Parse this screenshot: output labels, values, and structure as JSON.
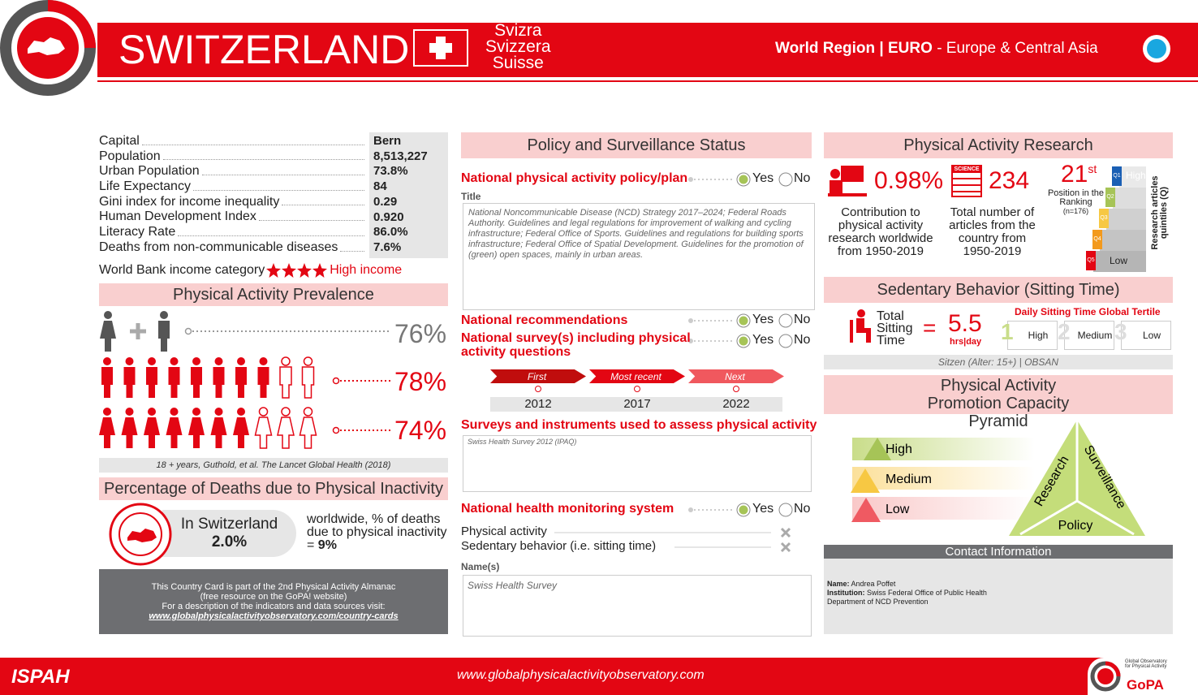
{
  "header": {
    "title": "SWITZERLAND",
    "local_names": [
      "Svizra",
      "Svizzera",
      "Suisse"
    ],
    "region_label": "World Region | EURO",
    "region_name": "- Europe & Central Asia"
  },
  "country_facts": {
    "rows": [
      [
        "Capital",
        "Bern"
      ],
      [
        "Population",
        "8,513,227"
      ],
      [
        "Urban Population",
        "73.8%"
      ],
      [
        "Life Expectancy",
        "84"
      ],
      [
        "Gini index for income inequality",
        "0.29"
      ],
      [
        "Human Development Index",
        "0.920"
      ],
      [
        "Literacy Rate",
        "86.0%"
      ],
      [
        "Deaths from non-communicable diseases",
        "7.6%"
      ]
    ],
    "income_label": "World Bank income category",
    "income_value": "High income"
  },
  "prevalence": {
    "title": "Physical Activity Prevalence",
    "values": [
      "76%",
      "78%",
      "74%"
    ],
    "source": "18 + years, Guthold, et al. The Lancet Global Health (2018)"
  },
  "inactivity_deaths": {
    "title": "Percentage of Deaths due to Physical Inactivity",
    "country_label": "In Switzerland",
    "country_value": "2.0%",
    "world_text": "worldwide, % of deaths due to physical inactivity = ",
    "world_value": "9%"
  },
  "note": {
    "lines": [
      "This Country Card is part of the 2nd Physical Activity Almanac",
      "(free resource on the GoPA! website)",
      "For a description of the indicators and data sources visit:",
      "www.globalphysicalactivityobservatory.com/country-cards"
    ]
  },
  "policy": {
    "title": "Policy and Surveillance Status",
    "options": [
      "Yes",
      "No"
    ],
    "plan_label": "National physical activity policy/plan",
    "title_label": "Title",
    "plan_title": "National Noncommunicable Disease (NCD) Strategy 2017–2024; Federal Roads Authority. Guidelines and legal regulations for improvement of walking and cycling infrastructure; Federal Office of Sports. Guidelines and regulations for building sports infrastructure; Federal Office of Spatial Development. Guidelines for the promotion of (green) open spaces, mainly in urban areas.",
    "recommendations_label": "National recommendations",
    "survey_label": "National survey(s) including physical activity questions",
    "timeline": [
      {
        "label": "First",
        "year": 2012
      },
      {
        "label": "Most recent",
        "year": 2017
      },
      {
        "label": "Next",
        "year": 2022
      }
    ],
    "instruments_label": "Surveys and instruments used to assess physical activity",
    "instruments": "Swiss Health Survey 2012 (IPAQ)",
    "monitoring_label": "National health monitoring system",
    "monitoring_items": [
      "Physical activity",
      "Sedentary behavior (i.e. sitting time)"
    ],
    "names_label": "Name(s)",
    "names": "Swiss Health Survey"
  },
  "research": {
    "title": "Physical Activity Research",
    "share": "0.98%",
    "share_text": "Contribution to physical activity research worldwide from 1950-2019",
    "science_icon": "SCIENCE",
    "articles": 234,
    "articles_text": "Total number of articles from the country from 1950-2019",
    "rank": 21,
    "rank_suffix": "st",
    "rank_label": "Position in the Ranking",
    "rank_n": "(n=176)",
    "quintiles": [
      "Q1",
      "Q2",
      "Q3",
      "Q4",
      "Q5"
    ],
    "high": "High",
    "low": "Low",
    "quintile_axis": "Research articles quintiles (Q)"
  },
  "sedentary": {
    "title": "Sedentary Behavior (Sitting Time)",
    "label": "Total Sitting Time",
    "equals": "=",
    "value": 5.5,
    "unit": "hrs|day",
    "tertile_title": "Daily Sitting Time Global Tertile",
    "tertiles": [
      {
        "n": 1,
        "label": "High"
      },
      {
        "n": 2,
        "label": "Medium"
      },
      {
        "n": 3,
        "label": "Low"
      }
    ],
    "source": "Sitzen (Alter: 15+) | OBSAN"
  },
  "pyramid": {
    "title": "Physical Activity Promotion Capacity Pyramid",
    "levels": [
      "High",
      "Medium",
      "Low"
    ],
    "sides": [
      "Research",
      "Surveillance",
      "Policy"
    ]
  },
  "contact": {
    "title": "Contact Information",
    "name_label": "Name:",
    "name": "Andrea Poffet",
    "institution_label": "Institution:",
    "institution": "Swiss Federal Office of Public Health Department of NCD Prevention"
  },
  "footer": {
    "ispah": "ISPAH",
    "url": "www.globalphysicalactivityobservatory.com",
    "gopa_text": "Global Observatory for Physical Activity",
    "gopa": "GoPA"
  }
}
